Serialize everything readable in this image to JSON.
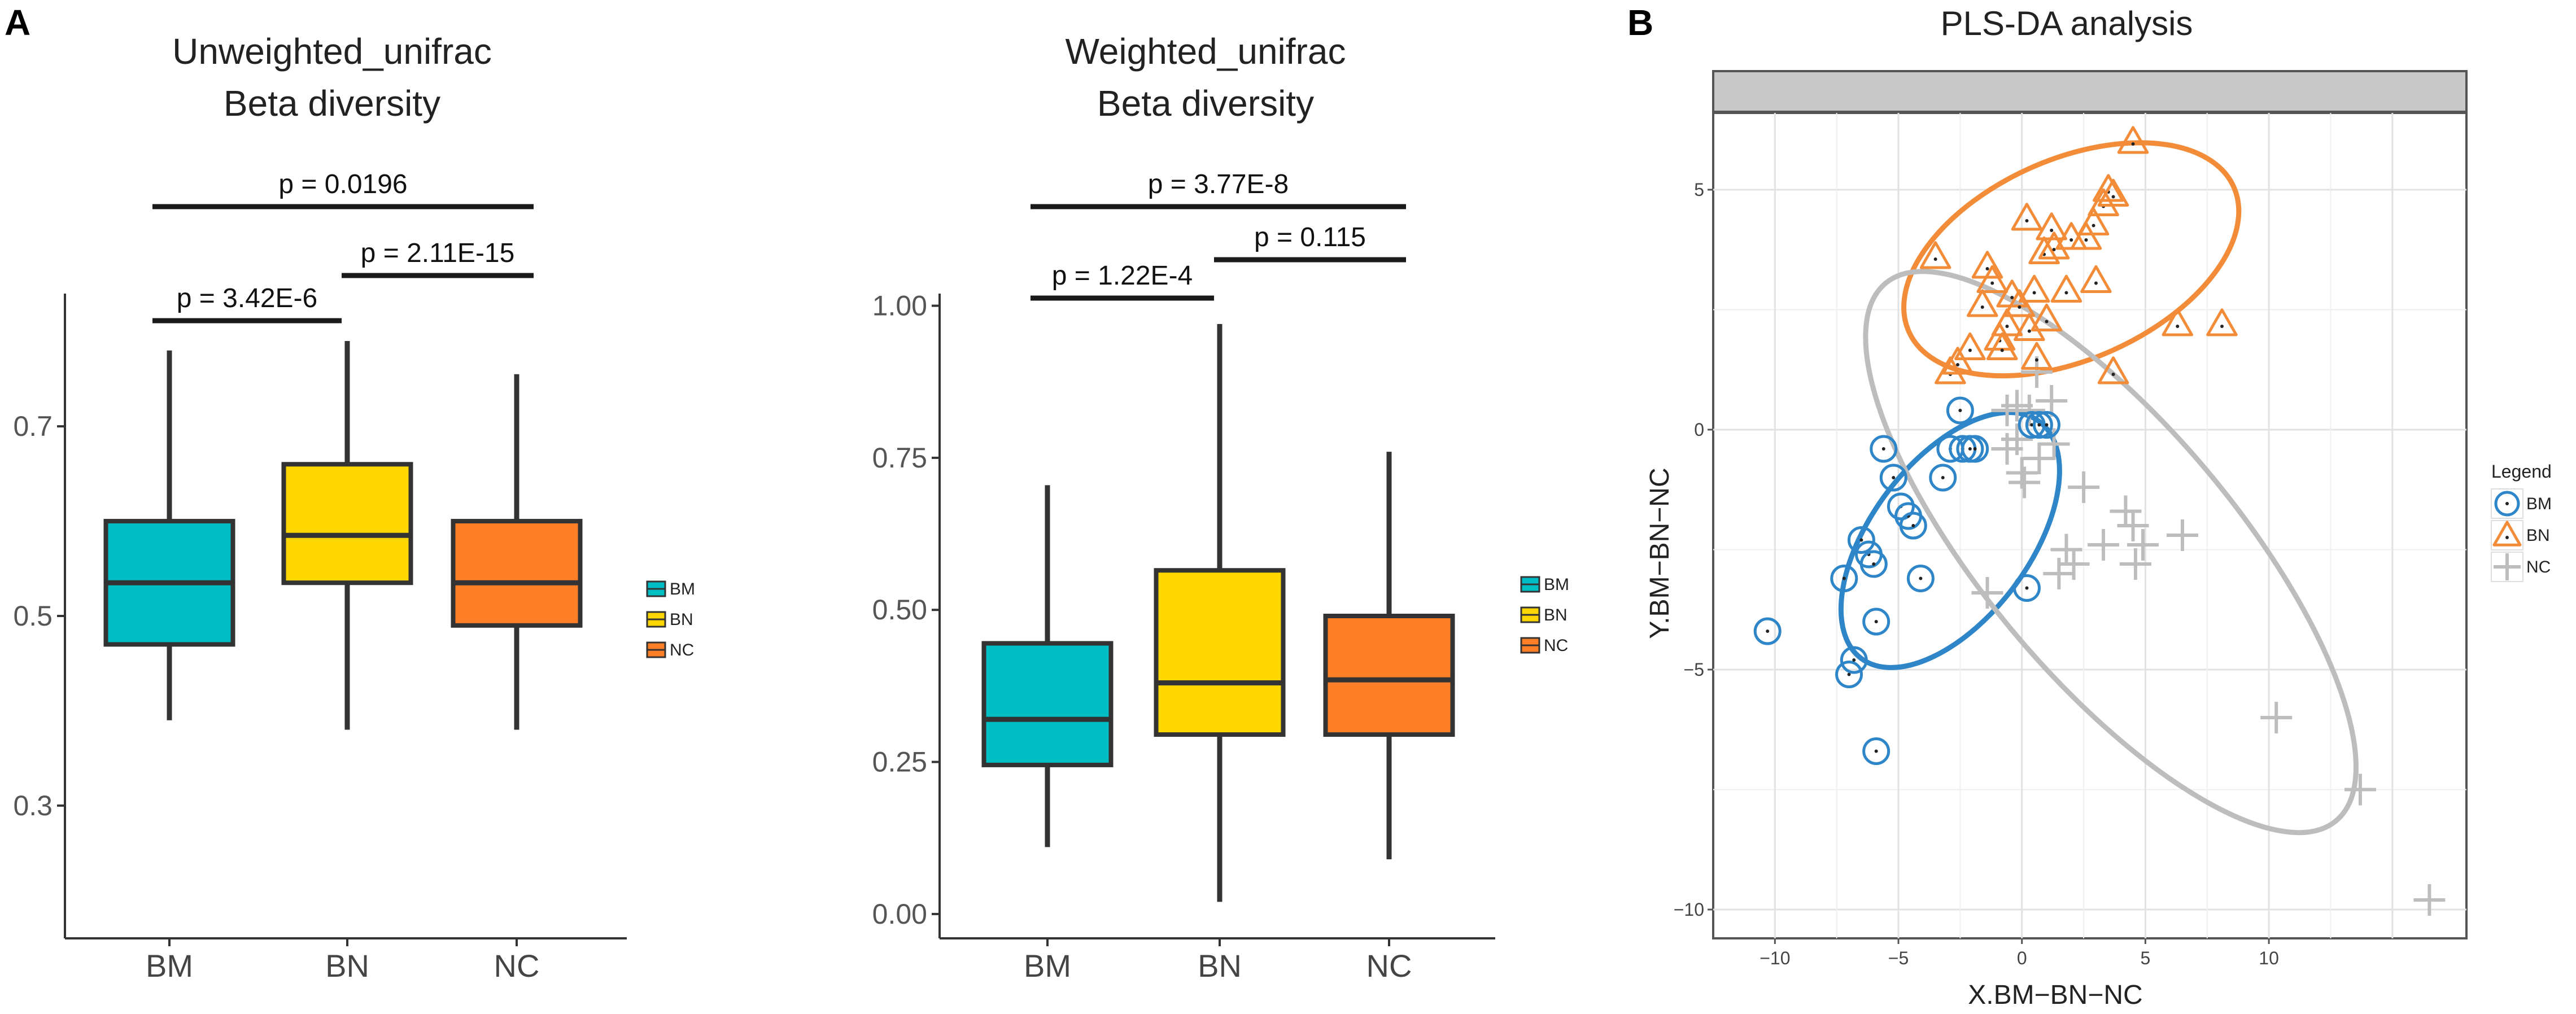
{
  "panel_labels": {
    "a": "A",
    "b": "B"
  },
  "colors": {
    "BM_box": "#00BFC4",
    "BN_box": "#FFD700",
    "NC_box": "#FF7F27",
    "BM_pls": "#2E86C8",
    "BN_pls": "#F28C38",
    "NC_pls": "#BDBDBD"
  },
  "chart_data": [
    {
      "type": "box",
      "title_line1": "Unweighted_unifrac",
      "title_line2": "Beta diversity",
      "categories": [
        "BM",
        "BN",
        "NC"
      ],
      "ylim": [
        0.16,
        0.84
      ],
      "yticks": [
        {
          "value": 0.3,
          "label": "0.3"
        },
        {
          "value": 0.5,
          "label": "0.5"
        },
        {
          "value": 0.7,
          "label": "0.7"
        }
      ],
      "boxes": [
        {
          "name": "BM",
          "min": 0.39,
          "q1": 0.47,
          "median": 0.535,
          "q3": 0.6,
          "max": 0.78
        },
        {
          "name": "BN",
          "min": 0.38,
          "q1": 0.535,
          "median": 0.585,
          "q3": 0.66,
          "max": 0.79
        },
        {
          "name": "NC",
          "min": 0.38,
          "q1": 0.49,
          "median": 0.535,
          "q3": 0.6,
          "max": 0.755
        }
      ],
      "brackets": [
        {
          "from": 0,
          "to": 1,
          "label": "p = 3.42E-6"
        },
        {
          "from": 1,
          "to": 2,
          "label": "p = 2.11E-15"
        },
        {
          "from": 0,
          "to": 2,
          "label": "p = 0.0196"
        }
      ],
      "legend": [
        "BM",
        "BN",
        "NC"
      ]
    },
    {
      "type": "box",
      "title_line1": "Weighted_unifrac",
      "title_line2": "Beta diversity",
      "categories": [
        "BM",
        "BN",
        "NC"
      ],
      "ylim": [
        -0.04,
        1.02
      ],
      "yticks": [
        {
          "value": 0.0,
          "label": "0.00"
        },
        {
          "value": 0.25,
          "label": "0.25"
        },
        {
          "value": 0.5,
          "label": "0.50"
        },
        {
          "value": 0.75,
          "label": "0.75"
        },
        {
          "value": 1.0,
          "label": "1.00"
        }
      ],
      "boxes": [
        {
          "name": "BM",
          "min": 0.11,
          "q1": 0.245,
          "median": 0.32,
          "q3": 0.445,
          "max": 0.705
        },
        {
          "name": "BN",
          "min": 0.02,
          "q1": 0.295,
          "median": 0.38,
          "q3": 0.565,
          "max": 0.97
        },
        {
          "name": "NC",
          "min": 0.09,
          "q1": 0.295,
          "median": 0.385,
          "q3": 0.49,
          "max": 0.76
        }
      ],
      "brackets": [
        {
          "from": 0,
          "to": 1,
          "label": "p = 1.22E-4"
        },
        {
          "from": 1,
          "to": 2,
          "label": "p = 0.115"
        },
        {
          "from": 0,
          "to": 2,
          "label": "p = 3.77E-8"
        }
      ],
      "legend": [
        "BM",
        "BN",
        "NC"
      ]
    },
    {
      "type": "scatter",
      "title": "PLS-DA analysis",
      "xlabel": "X.BM−BN−NC",
      "ylabel": "Y.BM−BN−NC",
      "xlim": [
        -12.5,
        18
      ],
      "ylim": [
        -10.6,
        6.6
      ],
      "xticks": [
        {
          "value": -10,
          "label": "−10"
        },
        {
          "value": -5,
          "label": "−5"
        },
        {
          "value": 0,
          "label": "0"
        },
        {
          "value": 5,
          "label": "5"
        },
        {
          "value": 10,
          "label": "10"
        }
      ],
      "yticks": [
        {
          "value": -10,
          "label": "−10"
        },
        {
          "value": -5,
          "label": "−5"
        },
        {
          "value": 0,
          "label": "0"
        },
        {
          "value": 5,
          "label": "5"
        }
      ],
      "legend_title": "Legend",
      "series": [
        {
          "name": "BM",
          "marker": "circle",
          "points": [
            [
              -10.3,
              -4.2
            ],
            [
              -7,
              -5.1
            ],
            [
              -6.8,
              -4.8
            ],
            [
              -7.2,
              -3.1
            ],
            [
              -6.5,
              -2.3
            ],
            [
              -6.2,
              -2.6
            ],
            [
              -6.0,
              -2.8
            ],
            [
              -5.9,
              -4.0
            ],
            [
              -5.9,
              -6.7
            ],
            [
              -5.6,
              -0.4
            ],
            [
              -5.2,
              -1.0
            ],
            [
              -4.9,
              -1.6
            ],
            [
              -4.6,
              -1.8
            ],
            [
              -4.4,
              -2.0
            ],
            [
              -4.1,
              -3.1
            ],
            [
              -3.2,
              -1.0
            ],
            [
              -2.9,
              -0.4
            ],
            [
              -2.5,
              0.4
            ],
            [
              -2.4,
              -0.4
            ],
            [
              -2.1,
              -0.4
            ],
            [
              -1.9,
              -0.4
            ],
            [
              0.2,
              -3.3
            ],
            [
              0.4,
              0.1
            ],
            [
              0.7,
              0.1
            ],
            [
              1.0,
              0.1
            ]
          ],
          "ellipse": {
            "cx": -2.9,
            "cy": -2.3,
            "rx": 6.0,
            "ry": 3.2,
            "angle_deg": 53
          }
        },
        {
          "name": "BN",
          "marker": "triangle",
          "points": [
            [
              -3.5,
              3.6
            ],
            [
              -2.9,
              1.2
            ],
            [
              -2.6,
              1.4
            ],
            [
              -2.1,
              1.7
            ],
            [
              -1.6,
              2.6
            ],
            [
              -1.4,
              3.4
            ],
            [
              -1.2,
              3.1
            ],
            [
              -0.9,
              1.9
            ],
            [
              -0.8,
              1.7
            ],
            [
              -0.6,
              2.2
            ],
            [
              -0.4,
              2.8
            ],
            [
              -0.1,
              2.6
            ],
            [
              0.2,
              4.4
            ],
            [
              0.3,
              2.1
            ],
            [
              0.5,
              2.9
            ],
            [
              0.6,
              1.5
            ],
            [
              0.9,
              3.7
            ],
            [
              1.0,
              2.3
            ],
            [
              1.2,
              4.2
            ],
            [
              1.3,
              3.8
            ],
            [
              1.8,
              2.9
            ],
            [
              2.0,
              4.0
            ],
            [
              2.6,
              4.0
            ],
            [
              2.9,
              4.3
            ],
            [
              3.0,
              3.1
            ],
            [
              3.3,
              4.7
            ],
            [
              3.5,
              5.0
            ],
            [
              3.7,
              4.9
            ],
            [
              3.7,
              1.2
            ],
            [
              4.5,
              6.0
            ],
            [
              6.3,
              2.2
            ],
            [
              8.1,
              2.2
            ]
          ],
          "ellipse": {
            "cx": 2.0,
            "cy": 3.55,
            "rx": 7.2,
            "ry": 4.05,
            "angle_deg": 24
          }
        },
        {
          "name": "NC",
          "marker": "plus",
          "points": [
            [
              -1.4,
              -3.4
            ],
            [
              -0.6,
              0.4
            ],
            [
              -0.6,
              -0.4
            ],
            [
              -0.2,
              0.5
            ],
            [
              -0.2,
              -0.2
            ],
            [
              0,
              -0.9
            ],
            [
              0.1,
              -1.1
            ],
            [
              0.3,
              0.4
            ],
            [
              0.6,
              1.2
            ],
            [
              0.7,
              -0.6
            ],
            [
              1.2,
              0.6
            ],
            [
              1.3,
              -0.3
            ],
            [
              1.5,
              -3.0
            ],
            [
              1.8,
              -2.5
            ],
            [
              2.1,
              -2.8
            ],
            [
              2.5,
              -1.2
            ],
            [
              3.3,
              -2.4
            ],
            [
              4.2,
              -1.7
            ],
            [
              4.5,
              -2.0
            ],
            [
              4.6,
              -2.8
            ],
            [
              4.9,
              -2.4
            ],
            [
              6.5,
              -2.2
            ],
            [
              10.3,
              -6.0
            ],
            [
              13.7,
              -7.5
            ],
            [
              16.5,
              -9.8
            ]
          ],
          "ellipse": {
            "cx": 3.6,
            "cy": -2.55,
            "rx": 14.2,
            "ry": 5.1,
            "angle_deg": -50
          }
        }
      ]
    }
  ]
}
